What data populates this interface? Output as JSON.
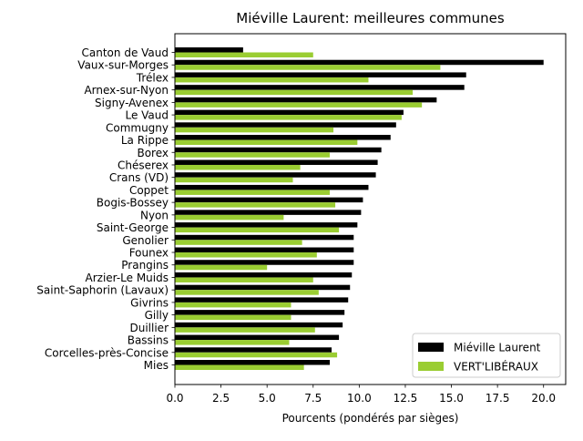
{
  "chart_data": {
    "type": "bar",
    "orientation": "horizontal",
    "title": "Miéville Laurent: meilleures communes",
    "xlabel": "Pourcents (pondérés par sièges)",
    "ylabel": "",
    "xlim": [
      0,
      21.2
    ],
    "xticks": [
      "0.0",
      "2.5",
      "5.0",
      "7.5",
      "10.0",
      "12.5",
      "15.0",
      "17.5",
      "20.0"
    ],
    "categories": [
      "Canton de Vaud",
      "Vaux-sur-Morges",
      "Trélex",
      "Arnex-sur-Nyon",
      "Signy-Avenex",
      "Le Vaud",
      "Commugny",
      "La Rippe",
      "Borex",
      "Chéserex",
      "Crans (VD)",
      "Coppet",
      "Bogis-Bossey",
      "Nyon",
      "Saint-George",
      "Genolier",
      "Founex",
      "Prangins",
      "Arzier-Le Muids",
      "Saint-Saphorin (Lavaux)",
      "Givrins",
      "Gilly",
      "Duillier",
      "Bassins",
      "Corcelles-près-Concise",
      "Mies"
    ],
    "series": [
      {
        "name": "Miéville Laurent",
        "color": "#000000",
        "values": [
          3.7,
          20.0,
          15.8,
          15.7,
          14.2,
          12.4,
          12.0,
          11.7,
          11.2,
          11.0,
          10.9,
          10.5,
          10.2,
          10.1,
          9.9,
          9.7,
          9.7,
          9.7,
          9.6,
          9.5,
          9.4,
          9.2,
          9.1,
          8.9,
          8.5,
          8.4
        ]
      },
      {
        "name": "VERT'LIBÉRAUX",
        "color": "#9acd32",
        "values": [
          7.5,
          14.4,
          10.5,
          12.9,
          13.4,
          12.3,
          8.6,
          9.9,
          8.4,
          6.8,
          6.4,
          8.4,
          8.7,
          5.9,
          8.9,
          6.9,
          7.7,
          5.0,
          7.5,
          7.8,
          6.3,
          6.3,
          7.6,
          6.2,
          8.8,
          7.0
        ]
      }
    ],
    "legend_position": "bottom-right",
    "grid": false
  }
}
